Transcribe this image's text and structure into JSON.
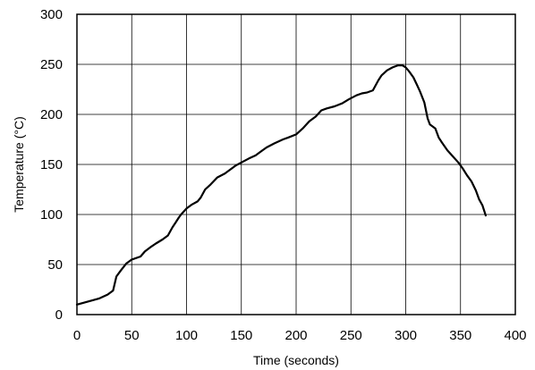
{
  "chart_data": {
    "type": "line",
    "xlabel": "Time (seconds)",
    "ylabel": "Temperature (°C)",
    "xlim": [
      0,
      400
    ],
    "ylim": [
      0,
      300
    ],
    "x_ticks": [
      0,
      50,
      100,
      150,
      200,
      250,
      300,
      350,
      400
    ],
    "y_ticks": [
      0,
      50,
      100,
      150,
      200,
      250,
      300
    ],
    "grid": true,
    "line_color": "#000000",
    "series": [
      {
        "x": [
          0,
          10,
          20,
          28,
          33,
          36,
          40,
          45,
          50,
          58,
          62,
          68,
          72,
          78,
          83,
          87,
          90,
          93,
          95,
          100,
          105,
          110,
          113,
          117,
          122,
          128,
          135,
          140,
          145,
          150,
          157,
          163,
          168,
          173,
          180,
          188,
          193,
          200,
          206,
          212,
          218,
          223,
          228,
          235,
          242,
          248,
          255,
          260,
          265,
          270,
          275,
          278,
          280,
          283,
          288,
          293,
          297,
          300,
          303,
          307,
          310,
          313,
          317,
          320,
          322,
          327,
          330,
          333,
          338,
          343,
          348,
          352,
          356,
          360,
          364,
          367,
          370,
          373
        ],
        "y": [
          10,
          13,
          16,
          20,
          24,
          38,
          44,
          51,
          55,
          58,
          63,
          68,
          71,
          75,
          79,
          87,
          92,
          97,
          100,
          106,
          110,
          113,
          117,
          125,
          130,
          137,
          141,
          145,
          149,
          152,
          156,
          159,
          163,
          167,
          171,
          175,
          177,
          180,
          186,
          193,
          198,
          204,
          206,
          208,
          211,
          215,
          219,
          221,
          222,
          224,
          234,
          239,
          241,
          244,
          247,
          249,
          249,
          247,
          243,
          237,
          230,
          223,
          212,
          196,
          190,
          186,
          177,
          172,
          164,
          158,
          152,
          146,
          139,
          133,
          124,
          115,
          109,
          99
        ]
      }
    ]
  }
}
